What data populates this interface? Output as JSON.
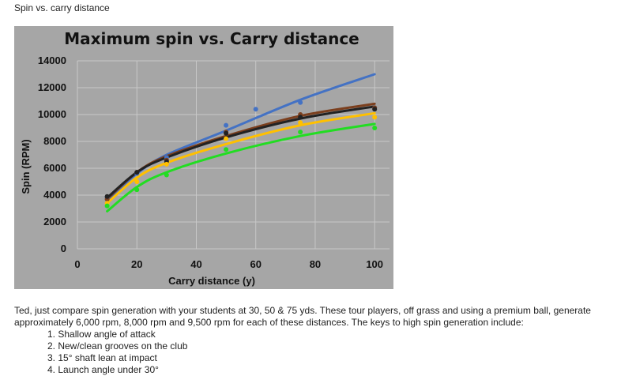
{
  "page": {
    "caption": "Spin vs. carry distance",
    "paragraph": "Ted, just compare spin generation with your students at 30, 50 & 75 yds. These tour players, off grass and using a premium ball, generate approximately 6,000 rpm, 8,000 rpm and 9,500 rpm for each of these distances. The keys to high spin generation include:",
    "keys": [
      "1. Shallow angle of attack",
      "2. New/clean grooves on the club",
      "3. 15° shaft lean at impact",
      "4. Launch angle under 30°"
    ]
  },
  "chart_data": {
    "type": "scatter",
    "title": "Maximum spin vs. Carry distance",
    "xlabel": "Carry distance (y)",
    "ylabel": "Spin (RPM)",
    "xlim": [
      0,
      105
    ],
    "ylim": [
      0,
      14000
    ],
    "xticks": [
      0,
      20,
      40,
      60,
      80,
      100
    ],
    "yticks": [
      0,
      2000,
      4000,
      6000,
      8000,
      10000,
      12000,
      14000
    ],
    "grid": true,
    "background_color": "#a6a6a6",
    "series": [
      {
        "color": "#4472c4",
        "points": [
          [
            10,
            3800
          ],
          [
            20,
            5600
          ],
          [
            30,
            6800
          ],
          [
            50,
            9200
          ],
          [
            60,
            10400
          ],
          [
            75,
            10900
          ],
          [
            100,
            10500
          ]
        ],
        "trend": [
          [
            10,
            3600
          ],
          [
            20,
            5600
          ],
          [
            30,
            7000
          ],
          [
            50,
            8800
          ],
          [
            75,
            11100
          ],
          [
            100,
            13000
          ]
        ]
      },
      {
        "color": "#7b3f1e",
        "points": [
          [
            10,
            3700
          ],
          [
            20,
            5700
          ],
          [
            30,
            6600
          ],
          [
            50,
            8700
          ],
          [
            75,
            10000
          ],
          [
            100,
            10500
          ]
        ],
        "trend": [
          [
            10,
            3700
          ],
          [
            20,
            5700
          ],
          [
            30,
            6900
          ],
          [
            50,
            8400
          ],
          [
            75,
            9900
          ],
          [
            100,
            10800
          ]
        ]
      },
      {
        "color": "#222222",
        "points": [
          [
            10,
            3900
          ],
          [
            20,
            5700
          ],
          [
            30,
            6500
          ],
          [
            50,
            8600
          ],
          [
            75,
            9800
          ],
          [
            100,
            10400
          ]
        ],
        "trend": [
          [
            10,
            3800
          ],
          [
            20,
            5700
          ],
          [
            30,
            6800
          ],
          [
            50,
            8300
          ],
          [
            75,
            9700
          ],
          [
            100,
            10600
          ]
        ]
      },
      {
        "color": "#ffc000",
        "points": [
          [
            10,
            3400
          ],
          [
            20,
            5000
          ],
          [
            30,
            6300
          ],
          [
            50,
            8200
          ],
          [
            75,
            9400
          ],
          [
            100,
            9800
          ]
        ],
        "trend": [
          [
            10,
            3400
          ],
          [
            20,
            5300
          ],
          [
            30,
            6400
          ],
          [
            50,
            7800
          ],
          [
            75,
            9200
          ],
          [
            100,
            10100
          ]
        ]
      },
      {
        "color": "#22dd22",
        "points": [
          [
            10,
            3200
          ],
          [
            20,
            4400
          ],
          [
            30,
            5500
          ],
          [
            50,
            7400
          ],
          [
            75,
            8700
          ],
          [
            100,
            9000
          ]
        ],
        "trend": [
          [
            10,
            2800
          ],
          [
            20,
            4600
          ],
          [
            30,
            5700
          ],
          [
            50,
            7100
          ],
          [
            75,
            8400
          ],
          [
            100,
            9300
          ]
        ]
      }
    ]
  }
}
